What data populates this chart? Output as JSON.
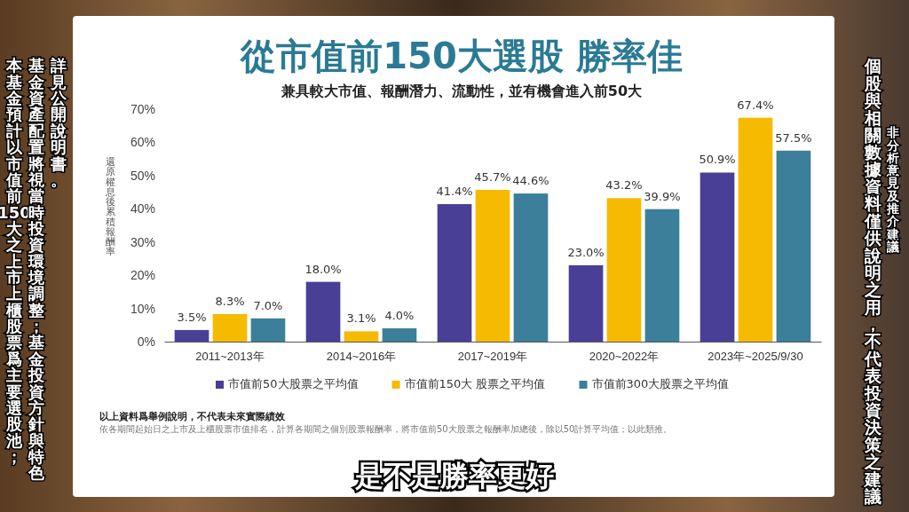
{
  "chart_data": {
    "type": "bar",
    "title": "從市值前150大選股 勝率佳",
    "subtitle": "兼具較大市值、報酬潛力、流動性，並有機會進入前50大",
    "ylabel": "還原權息後累積報酬率",
    "categories": [
      "2011~2013年",
      "2014~2016年",
      "2017~2019年",
      "2020~2022年",
      "2023年~2025/9/30"
    ],
    "series": [
      {
        "name": "市值前50大股票之平均值",
        "color": "#4a3f97",
        "values": [
          3.5,
          18.0,
          41.4,
          23.0,
          50.9
        ],
        "value_labels": [
          "3.5%",
          "18.0%",
          "41.4%",
          "23.0%",
          "50.9%"
        ]
      },
      {
        "name": "市值前150大 股票之平均值",
        "color": "#f6ba00",
        "values": [
          8.3,
          3.1,
          45.7,
          43.2,
          67.4
        ],
        "value_labels": [
          "8.3%",
          "3.1%",
          "45.7%",
          "43.2%",
          "67.4%"
        ]
      },
      {
        "name": "市值前300大股票之平均值",
        "color": "#3b7f9b",
        "values": [
          7.0,
          4.0,
          44.6,
          39.9,
          57.5
        ],
        "value_labels": [
          "7.0%",
          "4.0%",
          "44.6%",
          "39.9%",
          "57.5%"
        ]
      }
    ],
    "ylim": [
      0,
      70
    ],
    "yticks": [
      {
        "value": 0,
        "label": "0%"
      },
      {
        "value": 10,
        "label": "10%"
      },
      {
        "value": 20,
        "label": "20%"
      },
      {
        "value": 30,
        "label": "30%"
      },
      {
        "value": 40,
        "label": "40%"
      },
      {
        "value": 50,
        "label": "50%"
      },
      {
        "value": 60,
        "label": "60%"
      },
      {
        "value": 70,
        "label": "70%"
      }
    ],
    "grid": false,
    "legend": "bottom",
    "annotations": [
      "以上資料爲舉例說明，不代表未來實際績效",
      "依各期間起始日之上市及上櫃股票市值排名，計算各期間之個別股票報酬率，將市值前50大股票之報酬率加總後，除以50計算平均值；以此類推。",
      "本基金預計以市值前150大之上市上櫃股票爲主要選股池；",
      "基金資產配置將視當時投資環境調整；基金投資方針與特色",
      "詳見公開說明書。",
      "非分析意見及推介建議",
      "個股與相關數據資料僅供說明之用，不代表投資決策之建議",
      "是不是勝率更好"
    ]
  }
}
